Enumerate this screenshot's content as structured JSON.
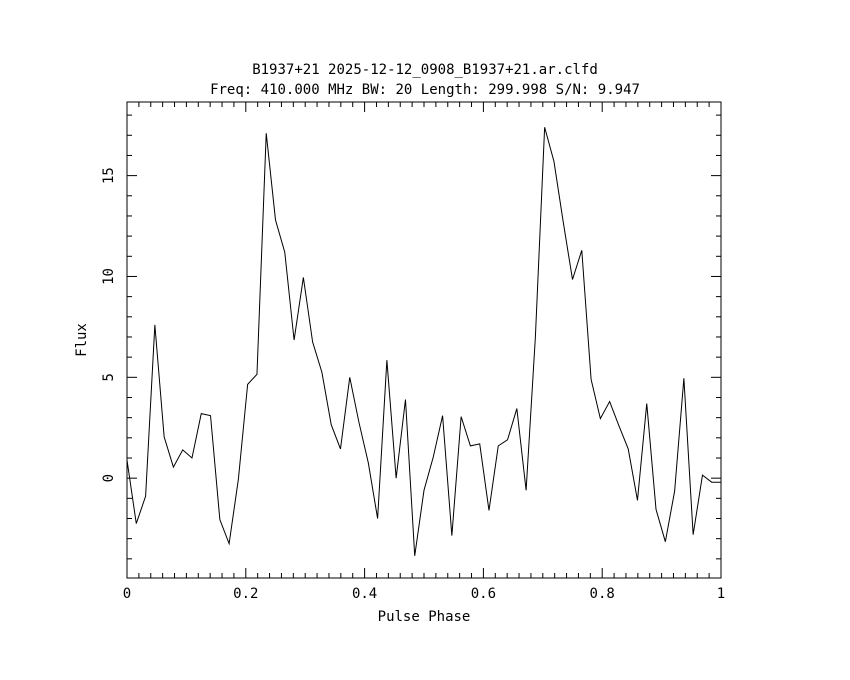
{
  "chart_data": {
    "type": "line",
    "title": "B1937+21 2025-12-12_0908_B1937+21.ar.clfd",
    "subtitle": "Freq: 410.000 MHz BW: 20 Length: 299.998 S/N: 9.947",
    "xlabel": "Pulse Phase",
    "ylabel": "Flux",
    "xlim": [
      0,
      1
    ],
    "ylim": [
      -4.95,
      18.65
    ],
    "x_ticks": [
      0,
      0.2,
      0.4,
      0.6,
      0.8,
      1
    ],
    "x_tick_labels": [
      "0",
      "0.2",
      "0.4",
      "0.6",
      "0.8",
      "1"
    ],
    "y_ticks": [
      0,
      5,
      10,
      15
    ],
    "y_tick_labels": [
      "0",
      "5",
      "10",
      "15"
    ],
    "grid": false,
    "series": [
      {
        "color": "#000000",
        "x": [
          0,
          0.0156,
          0.0313,
          0.0469,
          0.0625,
          0.0781,
          0.0938,
          0.1094,
          0.125,
          0.1406,
          0.1563,
          0.1719,
          0.1875,
          0.2031,
          0.2188,
          0.2344,
          0.25,
          0.2656,
          0.2813,
          0.2969,
          0.3125,
          0.3281,
          0.3438,
          0.3594,
          0.375,
          0.3906,
          0.4063,
          0.4219,
          0.4375,
          0.4531,
          0.4688,
          0.4844,
          0.5,
          0.5156,
          0.5313,
          0.5469,
          0.5625,
          0.5781,
          0.5938,
          0.6094,
          0.625,
          0.6406,
          0.6563,
          0.6719,
          0.6875,
          0.7031,
          0.7188,
          0.7344,
          0.75,
          0.7656,
          0.7813,
          0.7969,
          0.8125,
          0.8281,
          0.8438,
          0.8594,
          0.875,
          0.8906,
          0.9063,
          0.9219,
          0.9375,
          0.9531,
          0.9688,
          0.9844,
          1
        ],
        "values": [
          0.9,
          -2.25,
          -0.9,
          7.6,
          2.05,
          0.55,
          1.4,
          1.0,
          3.2,
          3.1,
          -2.05,
          -3.25,
          -0.05,
          4.65,
          5.15,
          17.1,
          12.8,
          11.2,
          6.85,
          9.95,
          6.75,
          5.25,
          2.65,
          1.45,
          5.0,
          2.75,
          0.75,
          -2.0,
          5.85,
          0.0,
          3.9,
          -3.85,
          -0.6,
          1.05,
          3.1,
          -2.85,
          3.05,
          1.6,
          1.7,
          -1.6,
          1.6,
          1.9,
          3.45,
          -0.6,
          7.0,
          17.4,
          15.7,
          12.7,
          9.85,
          11.3,
          4.9,
          2.95,
          3.8,
          2.6,
          1.45,
          -1.1,
          3.7,
          -1.55,
          -3.15,
          -0.65,
          4.95,
          -2.8,
          0.15,
          -0.2,
          -0.2
        ]
      }
    ]
  }
}
